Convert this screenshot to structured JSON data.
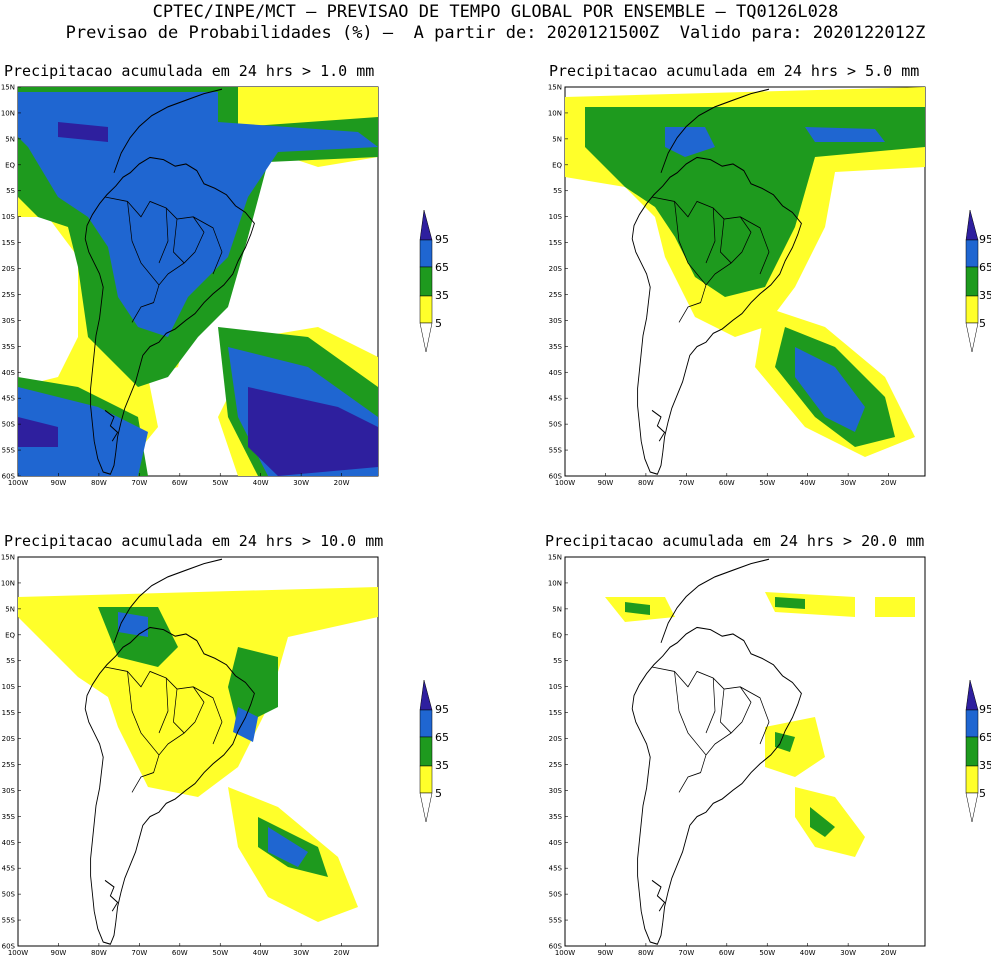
{
  "header": {
    "line1": "CPTEC/INPE/MCT – PREVISAO DE TEMPO GLOBAL POR ENSEMBLE – TQ0126L028",
    "line2": "Previsao de Probabilidades (%) –  A partir de: 2020121500Z  Valido para: 2020122012Z"
  },
  "axes": {
    "lat_labels": [
      "15N",
      "10N",
      "5N",
      "EQ",
      "5S",
      "10S",
      "15S",
      "20S",
      "25S",
      "30S",
      "35S",
      "40S",
      "45S",
      "50S",
      "55S",
      "60S"
    ],
    "lon_labels": [
      "100W",
      "90W",
      "80W",
      "70W",
      "60W",
      "50W",
      "40W",
      "30W",
      "20W"
    ]
  },
  "legend": {
    "levels": [
      "95",
      "65",
      "35",
      "5"
    ],
    "colors": {
      "level95": "#2e1f9e",
      "level65": "#1f66d1",
      "level35": "#1e9a1e",
      "level5": "#ffff2a",
      "land_line": "#000000"
    }
  },
  "panels": [
    {
      "title": "Precipitacao acumulada em 24 hrs > 1.0 mm"
    },
    {
      "title": "Precipitacao acumulada em 24 hrs > 5.0 mm"
    },
    {
      "title": "Precipitacao acumulada em 24 hrs > 10.0 mm"
    },
    {
      "title": "Precipitacao acumulada em 24 hrs > 20.0 mm"
    }
  ]
}
